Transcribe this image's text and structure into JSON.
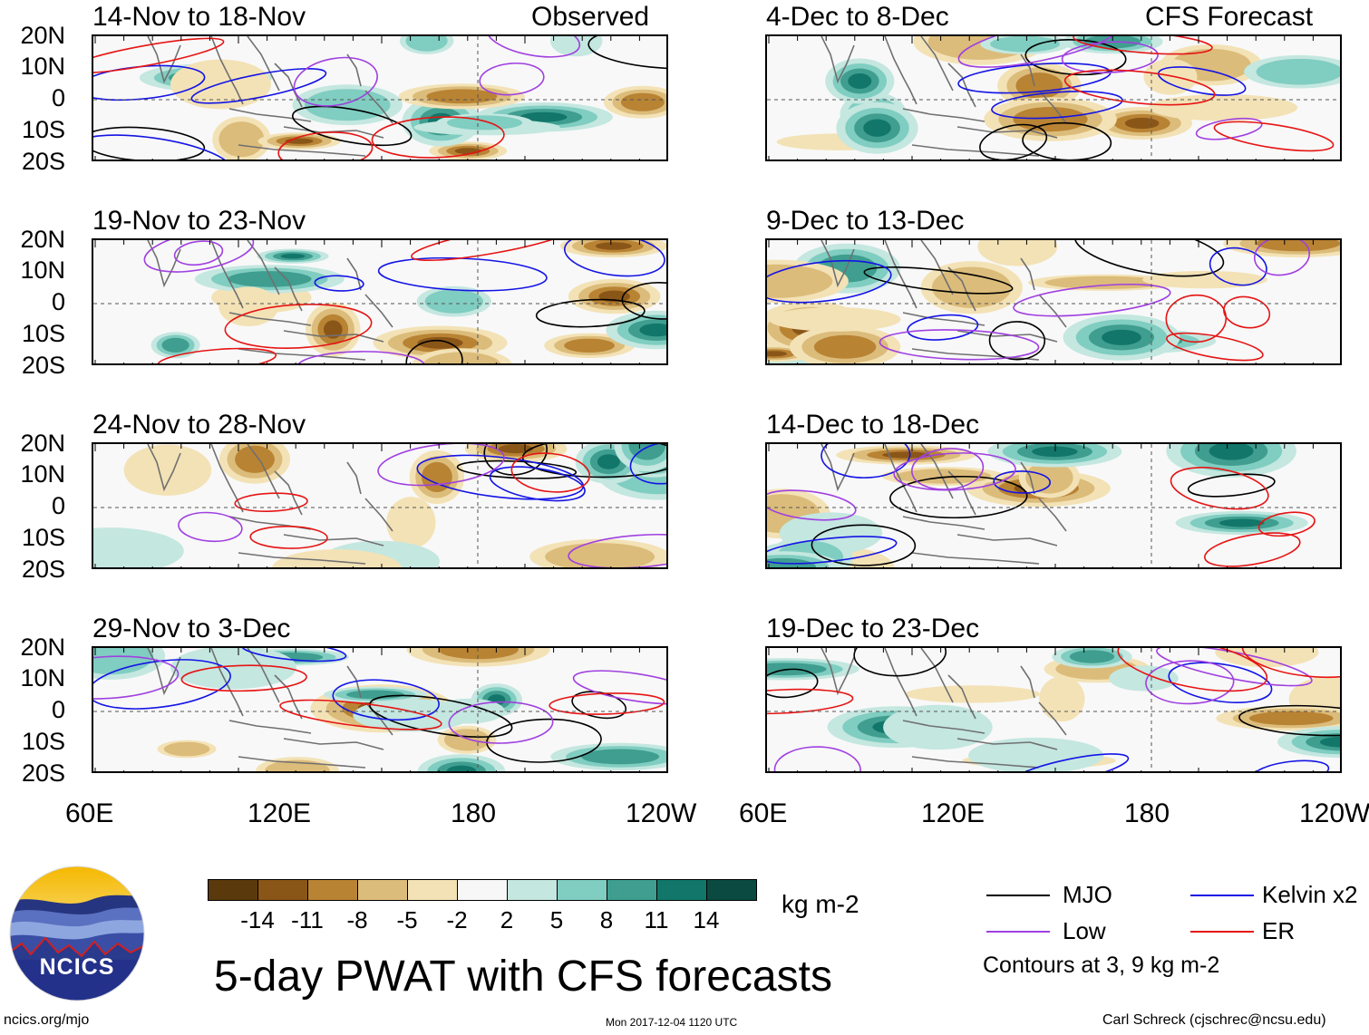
{
  "colors": {
    "mjo": "#000000",
    "kelvin": "#1414e6",
    "low": "#a040e0",
    "er": "#e61414",
    "coast": "#707070",
    "dry_dark": "#5a3a0c",
    "wet_dark": "#0c4a40"
  },
  "headers": {
    "observed": "Observed",
    "forecast": "CFS Forecast"
  },
  "panels_left": [
    {
      "title": "14-Nov to 18-Nov"
    },
    {
      "title": "19-Nov to 23-Nov"
    },
    {
      "title": "24-Nov to 28-Nov"
    },
    {
      "title": "29-Nov to 3-Dec"
    }
  ],
  "panels_right": [
    {
      "title": "4-Dec to 8-Dec"
    },
    {
      "title": "9-Dec to 13-Dec"
    },
    {
      "title": "14-Dec to 18-Dec"
    },
    {
      "title": "19-Dec to 23-Dec"
    }
  ],
  "lat_labels": [
    "20N",
    "10N",
    "0",
    "10S",
    "20S"
  ],
  "lon_labels": [
    "60E",
    "120E",
    "180",
    "120W"
  ],
  "colorbar": {
    "colors": [
      "#5a3a0c",
      "#8a5618",
      "#b98334",
      "#dcbc7a",
      "#f3e2b6",
      "#f7f7f7",
      "#c4e7e0",
      "#80cdc1",
      "#3f9e8f",
      "#12776a",
      "#0b4a40"
    ],
    "labels": [
      "-14",
      "-11",
      "-8",
      "-5",
      "-2",
      "2",
      "5",
      "8",
      "11",
      "14"
    ],
    "unit": "kg m-2"
  },
  "title": "5-day PWAT with CFS forecasts",
  "legend": {
    "mjo": "MJO",
    "kelvin": "Kelvin x2",
    "low": "Low",
    "er": "ER",
    "note": "Contours at 3, 9 kg m-2"
  },
  "logo": {
    "text": "NCICS"
  },
  "footer": {
    "left": "ncics.org/mjo",
    "center": "Mon 2017-12-04 1120 UTC",
    "right": "Carl Schreck (cjschrec@ncsu.edu)"
  }
}
